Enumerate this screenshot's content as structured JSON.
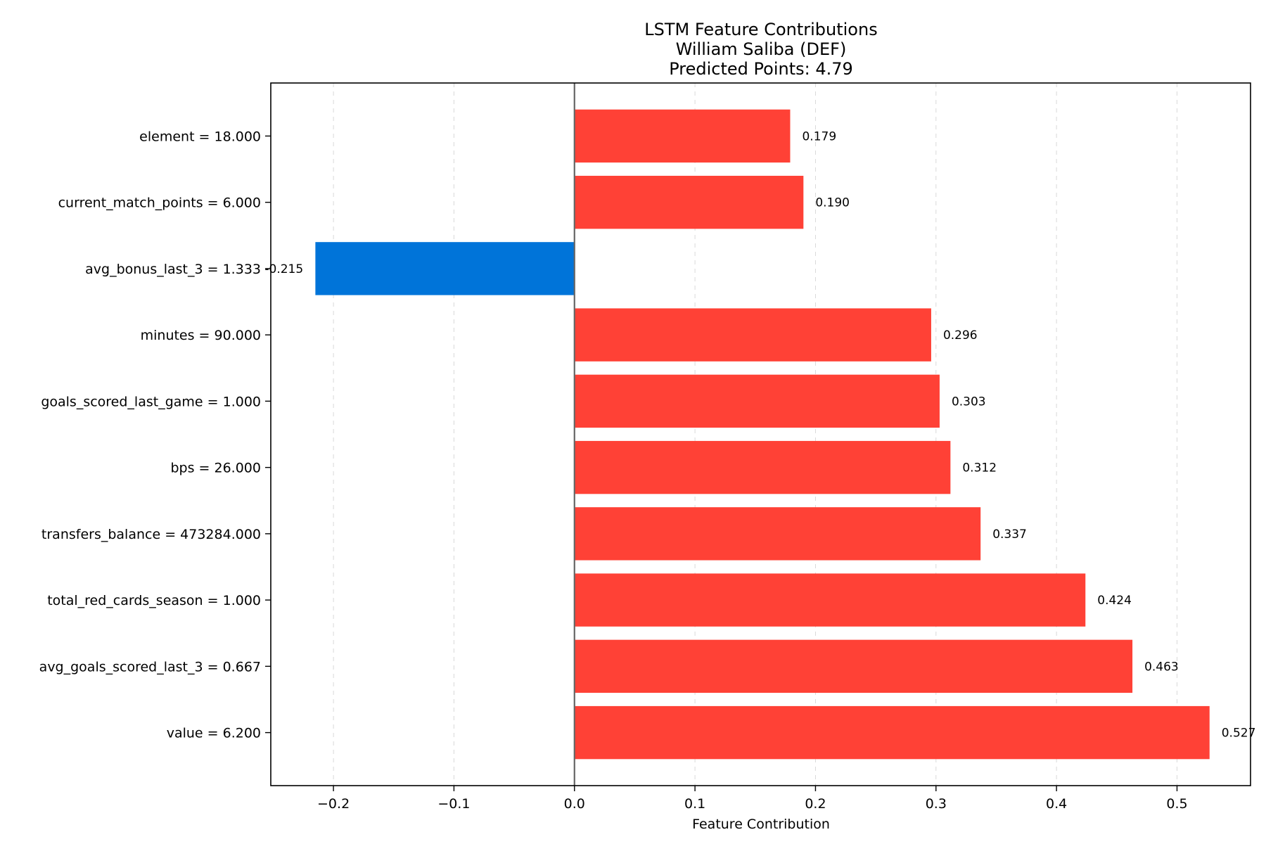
{
  "chart_data": {
    "type": "bar",
    "orientation": "horizontal",
    "title_lines": [
      "LSTM Feature Contributions",
      "William Saliba (DEF)",
      "Predicted Points: 4.79"
    ],
    "xlabel": "Feature Contribution",
    "ylabel": "",
    "xlim": [
      -0.252,
      0.561
    ],
    "xticks": [
      -0.2,
      -0.1,
      0.0,
      0.1,
      0.2,
      0.3,
      0.4,
      0.5
    ],
    "xtick_labels": [
      "−0.2",
      "−0.1",
      "0.0",
      "0.1",
      "0.2",
      "0.3",
      "0.4",
      "0.5"
    ],
    "grid": "x-dashed",
    "positive_color": "#ff4136",
    "negative_color": "#0074d9",
    "categories": [
      "element = 18.000",
      "current_match_points = 6.000",
      "avg_bonus_last_3 = 1.333",
      "minutes = 90.000",
      "goals_scored_last_game = 1.000",
      "bps = 26.000",
      "transfers_balance = 473284.000",
      "total_red_cards_season = 1.000",
      "avg_goals_scored_last_3 = 0.667",
      "value = 6.200"
    ],
    "values": [
      0.179,
      0.19,
      -0.215,
      0.296,
      0.303,
      0.312,
      0.337,
      0.424,
      0.463,
      0.527
    ],
    "value_labels": [
      "0.179",
      "0.190",
      "-0.215",
      "0.296",
      "0.303",
      "0.312",
      "0.337",
      "0.424",
      "0.463",
      "0.527"
    ]
  }
}
